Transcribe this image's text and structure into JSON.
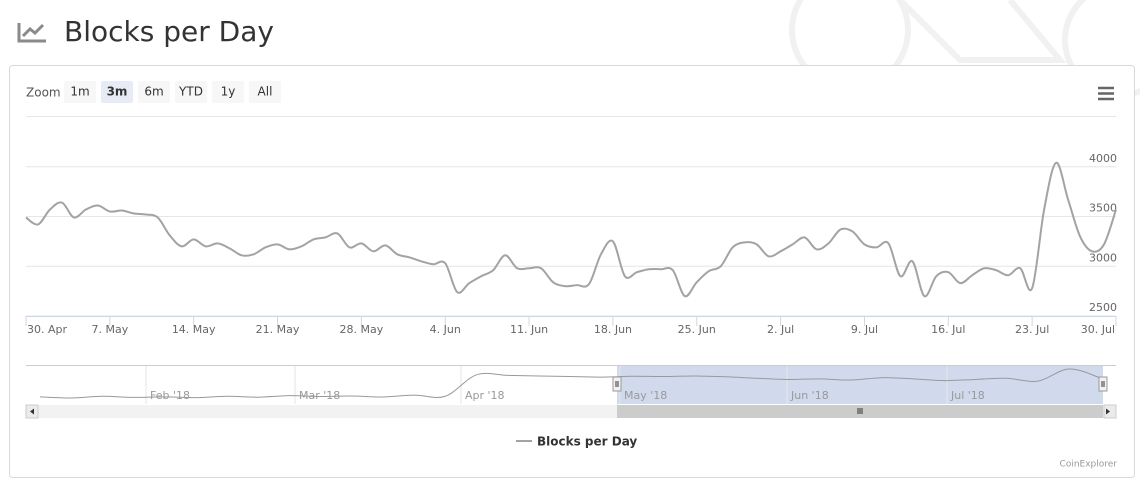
{
  "header": {
    "title": "Blocks per Day"
  },
  "chart_data": {
    "type": "line",
    "zoom": {
      "label": "Zoom",
      "buttons": [
        {
          "label": "1m",
          "selected": false
        },
        {
          "label": "3m",
          "selected": true
        },
        {
          "label": "6m",
          "selected": false
        },
        {
          "label": "YTD",
          "selected": false
        },
        {
          "label": "1y",
          "selected": false
        },
        {
          "label": "All",
          "selected": false
        }
      ]
    },
    "x": [
      "30. Apr",
      "1. May",
      "2. May",
      "3. May",
      "4. May",
      "5. May",
      "6. May",
      "7. May",
      "8. May",
      "9. May",
      "10. May",
      "11. May",
      "12. May",
      "13. May",
      "14. May",
      "15. May",
      "16. May",
      "17. May",
      "18. May",
      "19. May",
      "20. May",
      "21. May",
      "22. May",
      "23. May",
      "24. May",
      "25. May",
      "26. May",
      "27. May",
      "28. May",
      "29. May",
      "30. May",
      "31. May",
      "1. Jun",
      "2. Jun",
      "3. Jun",
      "4. Jun",
      "5. Jun",
      "6. Jun",
      "7. Jun",
      "8. Jun",
      "9. Jun",
      "10. Jun",
      "11. Jun",
      "12. Jun",
      "13. Jun",
      "14. Jun",
      "15. Jun",
      "16. Jun",
      "17. Jun",
      "18. Jun",
      "19. Jun",
      "20. Jun",
      "21. Jun",
      "22. Jun",
      "23. Jun",
      "24. Jun",
      "25. Jun",
      "26. Jun",
      "27. Jun",
      "28. Jun",
      "29. Jun",
      "30. Jun",
      "1. Jul",
      "2. Jul",
      "3. Jul",
      "4. Jul",
      "5. Jul",
      "6. Jul",
      "7. Jul",
      "8. Jul",
      "9. Jul",
      "10. Jul",
      "11. Jul",
      "12. Jul",
      "13. Jul",
      "14. Jul",
      "15. Jul",
      "16. Jul",
      "17. Jul",
      "18. Jul",
      "19. Jul",
      "20. Jul",
      "21. Jul",
      "22. Jul",
      "23. Jul",
      "24. Jul",
      "25. Jul",
      "26. Jul",
      "27. Jul",
      "28. Jul",
      "29. Jul",
      "30. Jul"
    ],
    "series": [
      {
        "name": "Blocks per Day",
        "color": "#a3a3a3",
        "values": [
          3490,
          3420,
          3570,
          3640,
          3490,
          3570,
          3610,
          3550,
          3560,
          3530,
          3520,
          3490,
          3310,
          3200,
          3270,
          3200,
          3230,
          3180,
          3110,
          3120,
          3190,
          3220,
          3170,
          3200,
          3270,
          3290,
          3330,
          3190,
          3230,
          3150,
          3210,
          3120,
          3090,
          3050,
          3020,
          3030,
          2740,
          2830,
          2900,
          2960,
          3110,
          2980,
          2980,
          2980,
          2840,
          2800,
          2810,
          2820,
          3120,
          3250,
          2900,
          2940,
          2970,
          2970,
          2960,
          2700,
          2840,
          2950,
          3000,
          3190,
          3240,
          3220,
          3100,
          3150,
          3220,
          3290,
          3170,
          3230,
          3370,
          3350,
          3220,
          3190,
          3230,
          2900,
          3050,
          2700,
          2900,
          2940,
          2830,
          2910,
          2980,
          2960,
          2910,
          2980,
          2780,
          3570,
          4040,
          3670,
          3300,
          3150,
          3220,
          3570
        ]
      }
    ],
    "xticks": [
      "30. Apr",
      "7. May",
      "14. May",
      "21. May",
      "28. May",
      "4. Jun",
      "11. Jun",
      "18. Jun",
      "25. Jun",
      "2. Jul",
      "9. Jul",
      "16. Jul",
      "23. Jul",
      "30. Jul"
    ],
    "ylim": [
      2500,
      4500
    ],
    "yticks": [
      2500,
      3000,
      3500,
      4000
    ],
    "grid": true,
    "navigator": {
      "labels": [
        "Feb '18",
        "Mar '18",
        "Apr '18",
        "May '18",
        "Jun '18",
        "Jul '18"
      ],
      "values": [
        1550,
        1450,
        1600,
        1500,
        1550,
        1480,
        1600,
        1520,
        1650,
        1580,
        1620,
        1540,
        1700,
        1600,
        3450,
        3400,
        3350,
        3300,
        3250,
        3320,
        3300,
        3350,
        3280,
        3150,
        3050,
        3100,
        3000,
        3200,
        3100,
        2950,
        3050,
        3150,
        2900,
        3950,
        3200
      ]
    },
    "credits": "CoinExplorer"
  }
}
